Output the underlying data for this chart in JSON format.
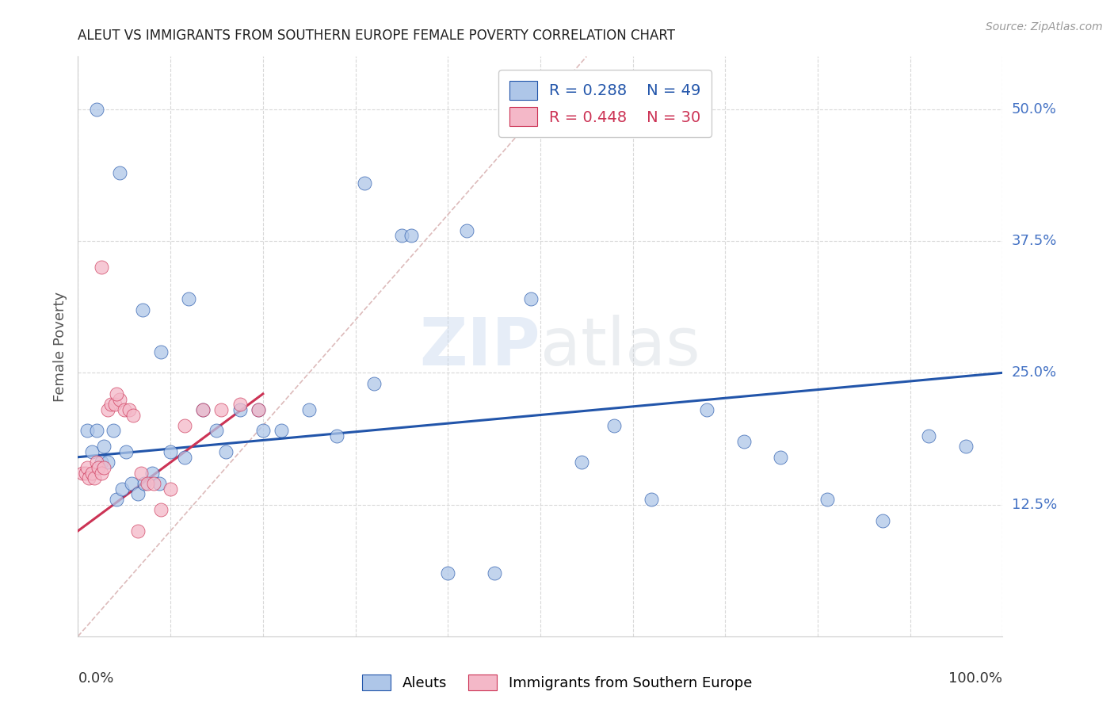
{
  "title": "ALEUT VS IMMIGRANTS FROM SOUTHERN EUROPE FEMALE POVERTY CORRELATION CHART",
  "source": "Source: ZipAtlas.com",
  "ylabel": "Female Poverty",
  "ytick_labels": [
    "12.5%",
    "25.0%",
    "37.5%",
    "50.0%"
  ],
  "ytick_values": [
    0.125,
    0.25,
    0.375,
    0.5
  ],
  "xlim": [
    0.0,
    1.0
  ],
  "ylim": [
    0.0,
    0.55
  ],
  "blue_color": "#aec6e8",
  "pink_color": "#f4b8c8",
  "line_blue": "#2255aa",
  "line_pink": "#cc3355",
  "diag_color": "#ddbbbb",
  "background_color": "#ffffff",
  "grid_color": "#d8d8d8",
  "aleuts_x": [
    0.02,
    0.045,
    0.07,
    0.09,
    0.12,
    0.2,
    0.31,
    0.35,
    0.42,
    0.49,
    0.545,
    0.58,
    0.62,
    0.68,
    0.72,
    0.76,
    0.81,
    0.87,
    0.92,
    0.96,
    0.01,
    0.015,
    0.02,
    0.025,
    0.028,
    0.032,
    0.038,
    0.042,
    0.048,
    0.052,
    0.058,
    0.065,
    0.072,
    0.08,
    0.088,
    0.1,
    0.115,
    0.135,
    0.15,
    0.16,
    0.175,
    0.195,
    0.22,
    0.25,
    0.28,
    0.32,
    0.36,
    0.4,
    0.45
  ],
  "aleuts_y": [
    0.5,
    0.44,
    0.31,
    0.27,
    0.32,
    0.195,
    0.43,
    0.38,
    0.385,
    0.32,
    0.165,
    0.2,
    0.13,
    0.215,
    0.185,
    0.17,
    0.13,
    0.11,
    0.19,
    0.18,
    0.195,
    0.175,
    0.195,
    0.165,
    0.18,
    0.165,
    0.195,
    0.13,
    0.14,
    0.175,
    0.145,
    0.135,
    0.145,
    0.155,
    0.145,
    0.175,
    0.17,
    0.215,
    0.195,
    0.175,
    0.215,
    0.215,
    0.195,
    0.215,
    0.19,
    0.24,
    0.38,
    0.06,
    0.06
  ],
  "immig_x": [
    0.005,
    0.008,
    0.01,
    0.012,
    0.015,
    0.018,
    0.02,
    0.022,
    0.025,
    0.028,
    0.032,
    0.036,
    0.04,
    0.045,
    0.05,
    0.055,
    0.06,
    0.068,
    0.075,
    0.082,
    0.09,
    0.1,
    0.115,
    0.135,
    0.155,
    0.175,
    0.195,
    0.025,
    0.042,
    0.065
  ],
  "immig_y": [
    0.155,
    0.155,
    0.16,
    0.15,
    0.155,
    0.15,
    0.165,
    0.16,
    0.155,
    0.16,
    0.215,
    0.22,
    0.22,
    0.225,
    0.215,
    0.215,
    0.21,
    0.155,
    0.145,
    0.145,
    0.12,
    0.14,
    0.2,
    0.215,
    0.215,
    0.22,
    0.215,
    0.35,
    0.23,
    0.1
  ]
}
